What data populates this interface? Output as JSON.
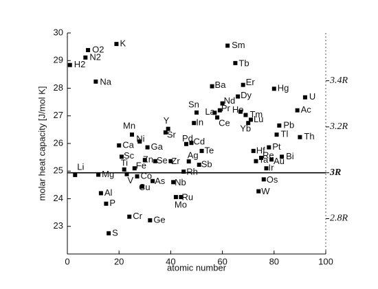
{
  "chart_data": {
    "type": "scatter",
    "x_label": "atomic number",
    "y_label": "molar heat capacity   [J/mol K]",
    "point_labels": [
      "H2",
      "Li",
      "N2",
      "O2",
      "Na",
      "Mg",
      "Al",
      "P",
      "S",
      "K",
      "Ca",
      "Sc",
      "Ti",
      "V",
      "Cr",
      "Mn",
      "Fe",
      "Co",
      "Ni",
      "Cu",
      "Zn",
      "Ga",
      "Ge",
      "As",
      "Se",
      "Sr",
      "Y",
      "Zr",
      "Nb",
      "Mo",
      "Ru",
      "Rh",
      "Pd",
      "Ag",
      "Cd",
      "In",
      "Sn",
      "Sb",
      "Te",
      "Ba",
      "La",
      "Ce",
      "Pr",
      "Nd",
      "Sm",
      "Tb",
      "Dy",
      "Ho",
      "Er",
      "Tm",
      "Yb",
      "Lu",
      "Hf",
      "Ta",
      "W",
      "Re",
      "Os",
      "Ir",
      "Pt",
      "Au",
      "Hg",
      "Tl",
      "Pb",
      "Bi",
      "Ac",
      "Th",
      "U"
    ],
    "x": [
      1,
      3,
      7,
      8,
      11,
      12,
      13,
      15,
      16,
      19,
      20,
      21,
      22,
      23,
      24,
      25,
      26,
      27,
      28,
      29,
      30,
      31,
      32,
      33,
      34,
      38,
      39,
      40,
      41,
      42,
      44,
      45,
      46,
      47,
      48,
      49,
      50,
      51,
      52,
      56,
      57,
      58,
      59,
      60,
      62,
      65,
      66,
      67,
      68,
      69,
      70,
      71,
      72,
      73,
      74,
      75,
      76,
      77,
      78,
      79,
      80,
      81,
      82,
      83,
      89,
      90,
      92
    ],
    "values": [
      28.84,
      24.86,
      29.11,
      29.38,
      28.24,
      24.87,
      24.2,
      23.82,
      22.75,
      29.6,
      25.93,
      25.52,
      25.06,
      24.89,
      23.35,
      26.32,
      25.1,
      24.81,
      26.07,
      24.44,
      25.4,
      25.86,
      23.22,
      24.64,
      25.36,
      26.4,
      26.53,
      25.36,
      24.6,
      24.06,
      24.06,
      24.98,
      25.98,
      25.35,
      26.02,
      26.74,
      27.12,
      25.23,
      25.73,
      28.07,
      27.11,
      26.94,
      27.2,
      27.45,
      29.54,
      28.91,
      27.7,
      27.15,
      28.12,
      27.03,
      26.74,
      26.86,
      25.73,
      25.36,
      24.27,
      25.48,
      24.7,
      25.1,
      25.86,
      25.42,
      27.98,
      26.32,
      26.65,
      25.52,
      27.2,
      26.23,
      27.67
    ],
    "color": "#000000",
    "xlim": [
      0,
      100
    ],
    "xticks": [
      0,
      20,
      40,
      60,
      80,
      100
    ],
    "ylim": [
      22,
      30
    ],
    "yticks": [
      23,
      24,
      25,
      26,
      27,
      28,
      29,
      30
    ],
    "y2ticks": [
      {
        "value": 28.27,
        "label": "3.4R"
      },
      {
        "value": 26.6,
        "label": "3.2R"
      },
      {
        "value": 24.94,
        "label": "3R"
      },
      {
        "value": 23.28,
        "label": "2.8R"
      }
    ],
    "reference_line": 24.94
  }
}
